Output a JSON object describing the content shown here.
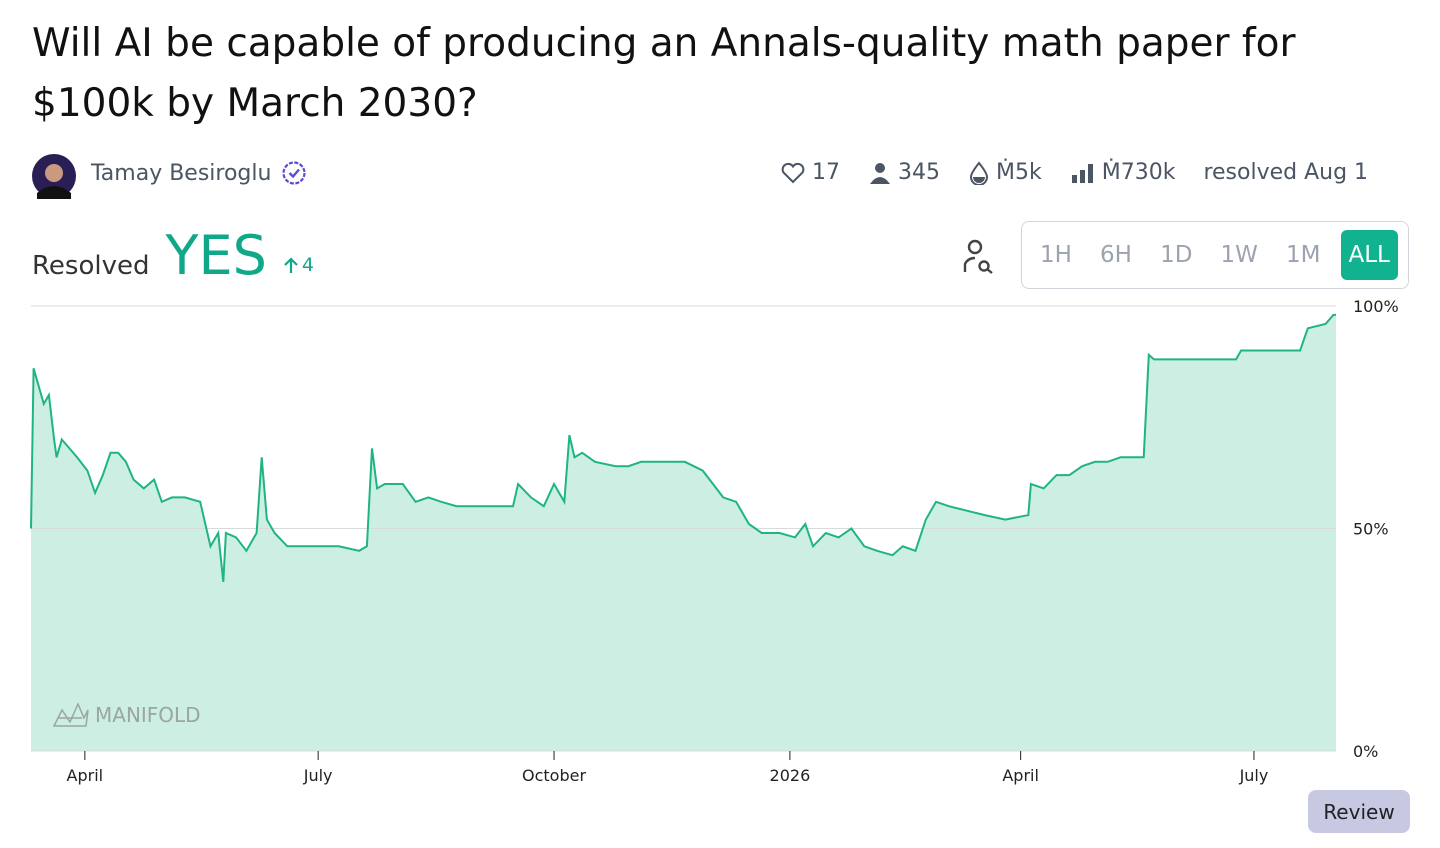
{
  "title": "Will AI be capable of producing an Annals-quality math paper for $100k by March 2030?",
  "author": "Tamay Besiroglu",
  "stats": {
    "likes": "17",
    "traders": "345",
    "liquidity": "Ṁ5k",
    "volume": "Ṁ730k",
    "resolved": "resolved Aug 1"
  },
  "status": {
    "label": "Resolved",
    "outcome": "YES",
    "change": "4"
  },
  "time_buttons": [
    "1H",
    "6H",
    "1D",
    "1W",
    "1M",
    "ALL"
  ],
  "watermark": "MANIFOLD",
  "review_button": "Review",
  "chart_data": {
    "type": "line",
    "x": [
      0,
      1,
      3,
      5,
      7,
      9,
      10,
      12,
      15,
      18,
      22,
      25,
      28,
      31,
      34,
      37,
      40,
      44,
      48,
      51,
      55,
      60,
      66,
      68,
      70,
      73,
      75,
      76,
      80,
      84,
      88,
      90,
      92,
      95,
      100,
      110,
      120,
      128,
      131,
      133,
      135,
      138,
      145,
      150,
      155,
      160,
      166,
      172,
      180,
      188,
      190,
      195,
      200,
      204,
      208,
      210,
      212,
      215,
      220,
      228,
      233,
      238,
      245,
      255,
      262,
      266,
      270,
      275,
      280,
      285,
      292,
      298,
      302,
      305,
      310,
      315,
      320,
      325,
      330,
      336,
      340,
      345,
      349,
      353,
      358,
      365,
      372,
      380,
      389,
      390,
      395,
      400,
      405,
      410,
      415,
      420,
      425,
      430,
      434,
      436,
      438,
      450,
      470,
      472,
      480,
      495,
      498,
      505,
      508,
      509
    ],
    "values": [
      50,
      86,
      82,
      78,
      80,
      70,
      66,
      70,
      68,
      66,
      63,
      58,
      62,
      67,
      67,
      65,
      61,
      59,
      61,
      56,
      57,
      57,
      56,
      51,
      46,
      49,
      38,
      49,
      48,
      45,
      49,
      66,
      52,
      49,
      46,
      46,
      46,
      45,
      46,
      68,
      59,
      60,
      60,
      56,
      57,
      56,
      55,
      55,
      55,
      55,
      60,
      57,
      55,
      60,
      56,
      71,
      66,
      67,
      65,
      64,
      64,
      65,
      65,
      65,
      63,
      60,
      57,
      56,
      51,
      49,
      49,
      48,
      51,
      46,
      49,
      48,
      50,
      46,
      45,
      44,
      46,
      45,
      52,
      56,
      55,
      54,
      53,
      52,
      53,
      60,
      59,
      62,
      62,
      64,
      65,
      65,
      66,
      66,
      66,
      89,
      88,
      88,
      88,
      90,
      90,
      90,
      95,
      96,
      98,
      98
    ],
    "color": "#1fb485",
    "fill_color": "#cdeee2",
    "xlim": [
      0,
      509
    ],
    "xticks": [
      {
        "value": 21,
        "label": "April"
      },
      {
        "value": 112,
        "label": "July"
      },
      {
        "value": 204,
        "label": "October"
      },
      {
        "value": 296,
        "label": "2026"
      },
      {
        "value": 386,
        "label": "April"
      },
      {
        "value": 477,
        "label": "July"
      }
    ],
    "ylim": [
      0,
      100
    ],
    "yticks": [
      {
        "value": 0,
        "label": "0%"
      },
      {
        "value": 50,
        "label": "50%"
      },
      {
        "value": 100,
        "label": "100%"
      }
    ],
    "grid": true
  }
}
